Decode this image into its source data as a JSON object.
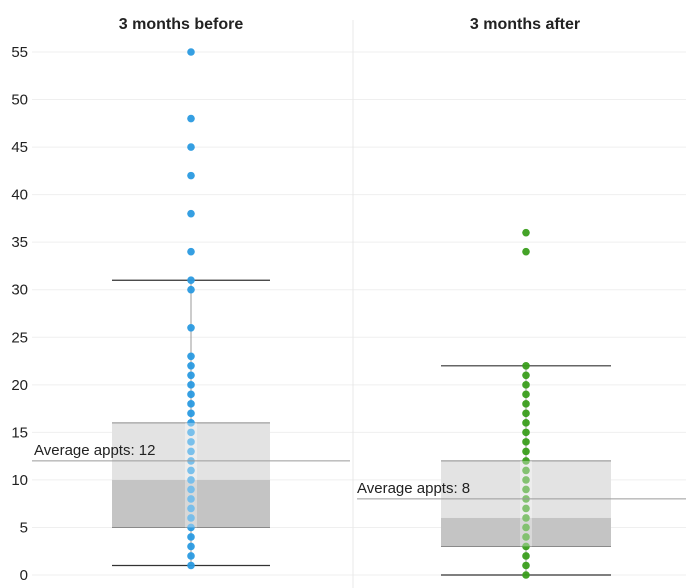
{
  "chart_data": {
    "type": "scatter",
    "subtype": "box-plot-with-jittered-points",
    "ylim": [
      0,
      55
    ],
    "y_ticks": [
      0,
      5,
      10,
      15,
      20,
      25,
      30,
      35,
      40,
      45,
      50,
      55
    ],
    "grid": true,
    "legend": "none",
    "panels": [
      {
        "title": "3 months before",
        "color": "#2a9ae0",
        "values": [
          1,
          2,
          3,
          4,
          5,
          6,
          7,
          8,
          9,
          10,
          11,
          12,
          13,
          14,
          15,
          16,
          17,
          18,
          19,
          20,
          21,
          22,
          23,
          26,
          30,
          31,
          34,
          38,
          42,
          45,
          48,
          55
        ],
        "box": {
          "whisker_low": 1,
          "q1": 5,
          "median": 10,
          "q3": 16,
          "whisker_high": 31
        },
        "average": 12,
        "average_label": "Average appts: 12"
      },
      {
        "title": "3 months after",
        "color": "#3a9e1c",
        "values": [
          0,
          1,
          2,
          3,
          4,
          5,
          6,
          7,
          8,
          9,
          10,
          11,
          12,
          13,
          14,
          15,
          16,
          17,
          18,
          19,
          20,
          21,
          22,
          34,
          36
        ],
        "box": {
          "whisker_low": 0,
          "q1": 3,
          "median": 6,
          "q3": 12,
          "whisker_high": 22
        },
        "average": 8,
        "average_label": "Average appts: 8"
      }
    ]
  }
}
